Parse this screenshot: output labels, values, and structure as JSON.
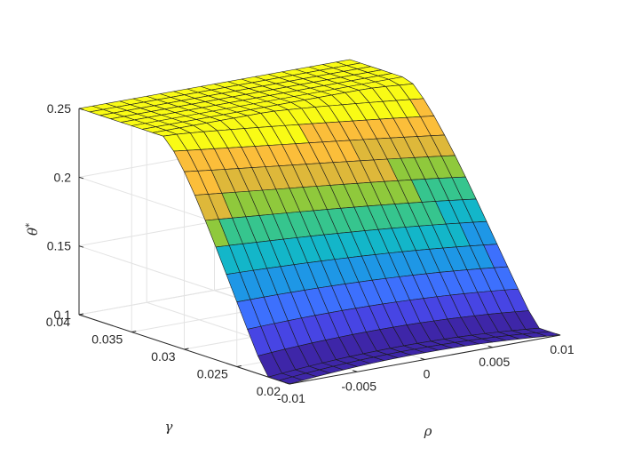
{
  "chart_data": {
    "type": "surface",
    "title": "",
    "xlabel": "ρ",
    "ylabel": "γ",
    "zlabel": "θ*",
    "zlabel_base": "θ",
    "zlabel_sup": "*",
    "xlim": [
      -0.01,
      0.01
    ],
    "ylim": [
      0.02,
      0.04
    ],
    "zlim": [
      0.1,
      0.25
    ],
    "x_ticks": [
      -0.01,
      -0.005,
      0,
      0.005,
      0.01
    ],
    "x_tick_labels": [
      "-0.01",
      "-0.005",
      "0",
      "0.005",
      "0.01"
    ],
    "y_ticks": [
      0.02,
      0.025,
      0.03,
      0.035,
      0.04
    ],
    "y_tick_labels": [
      "0.02",
      "0.025",
      "0.03",
      "0.035",
      "0.04"
    ],
    "z_ticks": [
      0.1,
      0.15,
      0.2,
      0.25
    ],
    "z_tick_labels": [
      "0.1",
      "0.15",
      "0.2",
      "0.25"
    ],
    "grid": true,
    "colormap": [
      "#3e26a8",
      "#4745e4",
      "#3d70fd",
      "#1e97e6",
      "#13b6c9",
      "#36c58e",
      "#8fc93c",
      "#deb83a",
      "#fbbe3a",
      "#f9fb15"
    ],
    "x_count": 21,
    "y_count": 21,
    "z_min_edge": 0.1,
    "z_min_center": 0.105,
    "z_max": 0.25
  }
}
